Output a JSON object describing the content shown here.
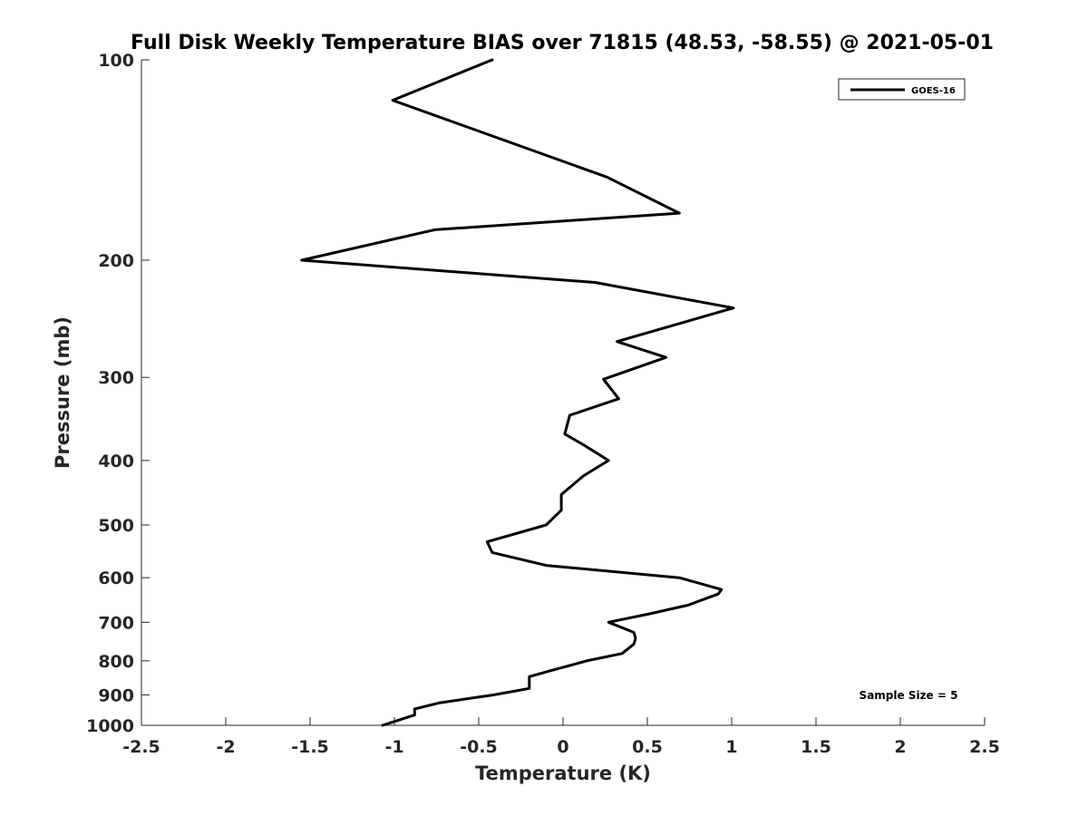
{
  "chart_data": {
    "type": "line",
    "title": "Full Disk Weekly Temperature BIAS over 71815 (48.53, -58.55) @ 2021-05-01",
    "xlabel": "Temperature (K)",
    "ylabel": "Pressure (mb)",
    "xlim": [
      -2.5,
      2.5
    ],
    "ylim": [
      100,
      1000
    ],
    "y_scale": "log",
    "y_reversed": true,
    "x_ticks": [
      "-2.5",
      "-2",
      "-1.5",
      "-1",
      "-0.5",
      "0",
      "0.5",
      "1",
      "1.5",
      "2",
      "2.5"
    ],
    "x_tick_values": [
      -2.5,
      -2,
      -1.5,
      -1,
      -0.5,
      0,
      0.5,
      1,
      1.5,
      2,
      2.5
    ],
    "y_ticks": [
      "100",
      "200",
      "300",
      "400",
      "500",
      "600",
      "700",
      "800",
      "900",
      "1000"
    ],
    "y_tick_values": [
      100,
      200,
      300,
      400,
      500,
      600,
      700,
      800,
      900,
      1000
    ],
    "grid": false,
    "legend_position": "top-right",
    "annotation": "Sample Size = 5",
    "series": [
      {
        "name": "GOES-16",
        "color": "#000000",
        "x": [
          -0.42,
          -1.01,
          0.26,
          0.69,
          -0.76,
          -1.55,
          0.19,
          1.01,
          0.32,
          0.61,
          0.24,
          0.33,
          0.04,
          0.01,
          0.13,
          0.27,
          0.12,
          -0.01,
          -0.01,
          -0.1,
          -0.45,
          -0.42,
          -0.1,
          0.69,
          0.94,
          0.92,
          0.74,
          0.51,
          0.27,
          0.42,
          0.43,
          0.42,
          0.35,
          0.14,
          -0.09,
          -0.2,
          -0.2,
          -0.41,
          -0.73,
          -0.88,
          -0.88,
          -1.07
        ],
        "y": [
          100,
          115,
          150,
          170,
          180,
          200,
          216,
          236,
          265,
          280,
          302,
          323,
          342,
          365,
          380,
          400,
          422,
          450,
          475,
          500,
          530,
          550,
          575,
          600,
          625,
          635,
          660,
          680,
          700,
          725,
          740,
          755,
          780,
          800,
          830,
          845,
          880,
          900,
          925,
          945,
          965,
          1000
        ]
      }
    ]
  }
}
